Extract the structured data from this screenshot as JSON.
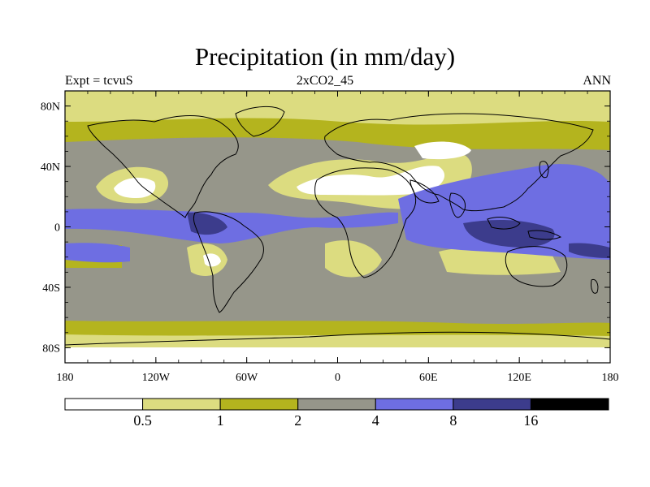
{
  "title": "Precipitation (in mm/day)",
  "header": {
    "left": "Expt = tcvuS",
    "center": "2xCO2_45",
    "right": "ANN"
  },
  "axes": {
    "lat_ticks": [
      "80N",
      "40N",
      "0",
      "40S",
      "80S"
    ],
    "lon_ticks": [
      "180",
      "120W",
      "60W",
      "0",
      "60E",
      "120E",
      "180"
    ],
    "lat_range": [
      -90,
      90
    ],
    "lon_range": [
      -180,
      180
    ]
  },
  "colorbar": {
    "levels": [
      "0.5",
      "1",
      "2",
      "4",
      "8",
      "16"
    ],
    "colors": [
      "#ffffff",
      "#dcdc80",
      "#b4b41e",
      "#96968a",
      "#6e6ee2",
      "#3c3c8c",
      "#000000"
    ]
  },
  "legend_icons": [
    "coastline-outline"
  ]
}
